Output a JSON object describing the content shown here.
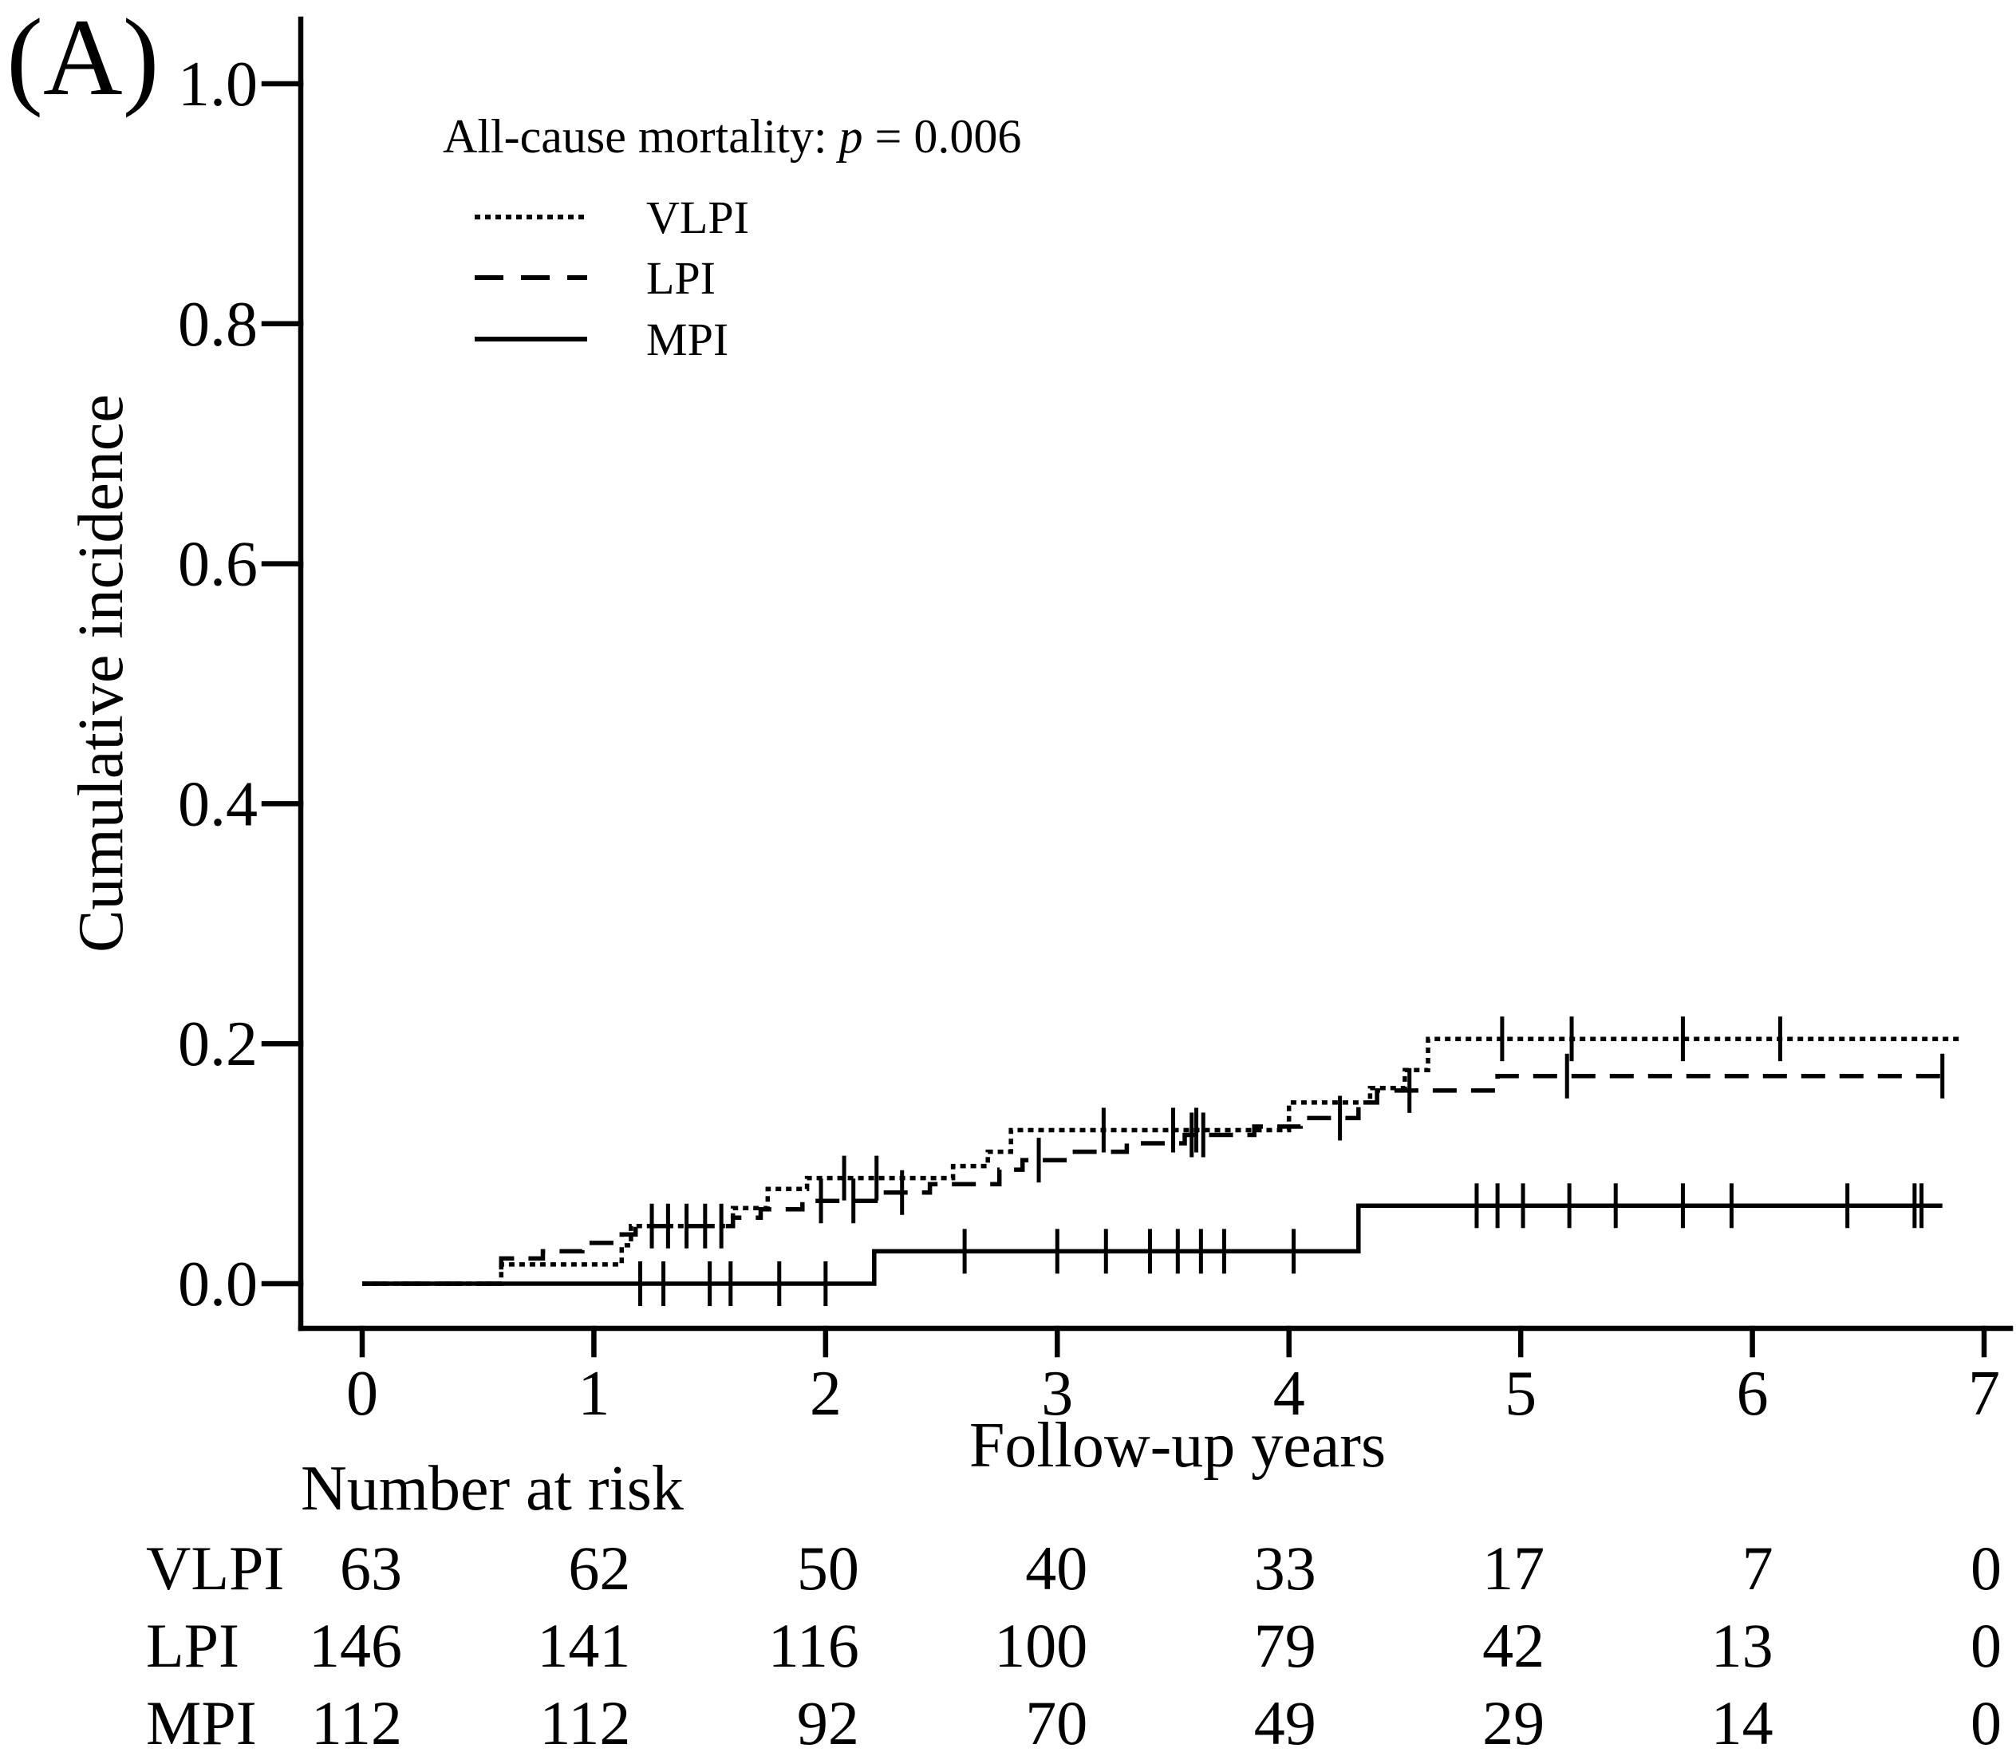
{
  "chart_data": {
    "type": "line",
    "panel_label": "(A)",
    "xlabel": "Follow-up years",
    "ylabel": "Cumulative incidence",
    "xlim": [
      0,
      7
    ],
    "ylim": [
      0,
      1.0
    ],
    "x_ticks": [
      0,
      1,
      2,
      3,
      4,
      5,
      6,
      7
    ],
    "x_tick_labels": [
      "0",
      "1",
      "2",
      "3",
      "4",
      "5",
      "6",
      "7"
    ],
    "y_ticks": [
      0,
      0.2,
      0.4,
      0.6,
      0.8,
      1.0
    ],
    "y_tick_labels": [
      "0.0",
      "0.2",
      "0.4",
      "0.6",
      "0.8",
      "1.0"
    ],
    "grid": false,
    "legend": {
      "position": "top-left",
      "title_prefix": "All-cause mortality: ",
      "title_stat": "p",
      "title_suffix": " = 0.006"
    },
    "series": [
      {
        "name": "VLPI",
        "color": "#000000",
        "steps": [
          [
            0,
            0
          ],
          [
            0.6,
            0.016
          ],
          [
            1.12,
            0.032
          ],
          [
            1.16,
            0.048
          ],
          [
            1.6,
            0.063
          ],
          [
            1.75,
            0.079
          ],
          [
            1.92,
            0.088
          ],
          [
            2.55,
            0.098
          ],
          [
            2.7,
            0.11
          ],
          [
            2.8,
            0.128
          ],
          [
            4.0,
            0.151
          ],
          [
            4.35,
            0.163
          ],
          [
            4.5,
            0.178
          ],
          [
            4.6,
            0.204
          ]
        ],
        "end_time": 6.9,
        "censored": [
          1.4,
          2.08,
          2.22,
          3.2,
          3.5,
          3.6,
          4.92,
          5.22,
          5.7,
          6.12
        ]
      },
      {
        "name": "LPI",
        "color": "#000000",
        "steps": [
          [
            0,
            0
          ],
          [
            0.6,
            0.021
          ],
          [
            0.78,
            0.027
          ],
          [
            0.95,
            0.034
          ],
          [
            1.12,
            0.041
          ],
          [
            1.18,
            0.048
          ],
          [
            1.6,
            0.055
          ],
          [
            1.72,
            0.062
          ],
          [
            1.9,
            0.069
          ],
          [
            2.25,
            0.076
          ],
          [
            2.45,
            0.083
          ],
          [
            2.75,
            0.095
          ],
          [
            2.85,
            0.103
          ],
          [
            3.05,
            0.11
          ],
          [
            3.3,
            0.117
          ],
          [
            3.55,
            0.124
          ],
          [
            3.85,
            0.131
          ],
          [
            4.05,
            0.138
          ],
          [
            4.3,
            0.151
          ],
          [
            4.38,
            0.161
          ],
          [
            4.9,
            0.173
          ]
        ],
        "end_time": 6.85,
        "censored": [
          1.25,
          1.32,
          1.48,
          1.55,
          1.98,
          2.12,
          2.33,
          2.92,
          3.58,
          3.63,
          4.22,
          4.52,
          5.2,
          6.82
        ]
      },
      {
        "name": "MPI",
        "color": "#000000",
        "steps": [
          [
            0,
            0
          ],
          [
            2.21,
            0.027
          ],
          [
            4.3,
            0.065
          ]
        ],
        "end_time": 6.82,
        "censored": [
          1.2,
          1.3,
          1.5,
          1.59,
          1.8,
          2.0,
          2.6,
          3.0,
          3.21,
          3.4,
          3.52,
          3.62,
          3.72,
          4.02,
          4.81,
          4.9,
          5.01,
          5.21,
          5.41,
          5.7,
          5.91,
          6.41,
          6.7,
          6.73
        ]
      }
    ],
    "risk_table": {
      "title": "Number at risk",
      "times": [
        0,
        1,
        2,
        3,
        4,
        5,
        6,
        7
      ],
      "rows": [
        {
          "label": "VLPI",
          "values": [
            63,
            62,
            50,
            40,
            33,
            17,
            7,
            0
          ]
        },
        {
          "label": "LPI",
          "values": [
            146,
            141,
            116,
            100,
            79,
            42,
            13,
            0
          ]
        },
        {
          "label": "MPI",
          "values": [
            112,
            112,
            92,
            70,
            49,
            29,
            14,
            0
          ]
        }
      ]
    }
  }
}
